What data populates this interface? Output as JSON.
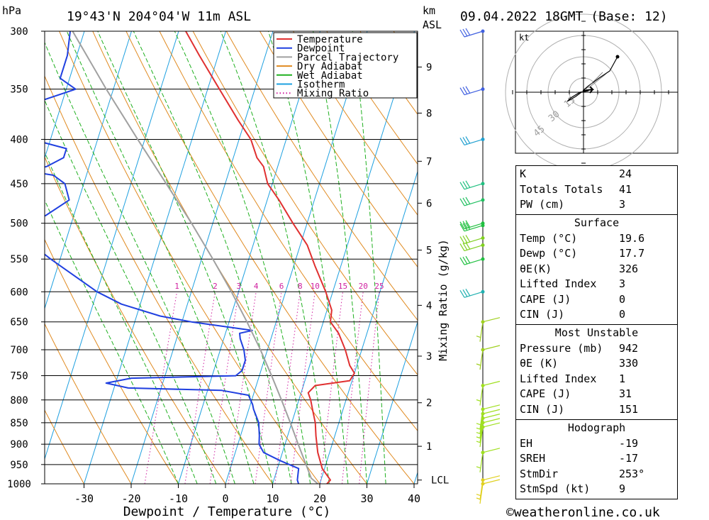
{
  "header": {
    "pressure_unit": "hPa",
    "location": "19°43'N  204°04'W  11m  ASL",
    "km_unit": "km",
    "km_asl": "ASL",
    "datetime": "09.04.2022  18GMT  (Base: 12)"
  },
  "chart_data": {
    "type": "line",
    "xlabel": "Dewpoint / Temperature (°C)",
    "ylabel_right": "Mixing Ratio (g/kg)",
    "xlim": [
      -40,
      40
    ],
    "ylim": [
      1000,
      300
    ],
    "pressure_ticks": [
      300,
      350,
      400,
      450,
      500,
      550,
      600,
      650,
      700,
      750,
      800,
      850,
      900,
      950,
      1000
    ],
    "temperature_ticks": [
      -30,
      -20,
      -10,
      0,
      10,
      20,
      30,
      40
    ],
    "km_ticks": [
      {
        "label": "9",
        "p": 330
      },
      {
        "label": "8",
        "p": 373
      },
      {
        "label": "7",
        "p": 424
      },
      {
        "label": "6",
        "p": 474
      },
      {
        "label": "5",
        "p": 537
      },
      {
        "label": "4",
        "p": 622
      },
      {
        "label": "3",
        "p": 712
      },
      {
        "label": "2",
        "p": 806
      },
      {
        "label": "1",
        "p": 905
      },
      {
        "label": "LCL",
        "p": 990
      }
    ],
    "mixing_ratio_labels": [
      "1",
      "2",
      "3",
      "4",
      "6",
      "8",
      "10",
      "15",
      "20",
      "25"
    ],
    "mixing_ratio_values": [
      1,
      2,
      3,
      4,
      6,
      8,
      10,
      15,
      20,
      25
    ],
    "legend": [
      {
        "name": "Temperature",
        "color": "#e03030",
        "dotted": false
      },
      {
        "name": "Dewpoint",
        "color": "#2040e0",
        "dotted": false
      },
      {
        "name": "Parcel Trajectory",
        "color": "#a0a0a0",
        "dotted": false
      },
      {
        "name": "Dry Adiabat",
        "color": "#e08a20",
        "dotted": false
      },
      {
        "name": "Wet Adiabat",
        "color": "#20b020",
        "dotted": false
      },
      {
        "name": "Isotherm",
        "color": "#1ea0e0",
        "dotted": false
      },
      {
        "name": "Mixing Ratio",
        "color": "#d020a0",
        "dotted": true
      }
    ],
    "series": [
      {
        "name": "Temperature",
        "color": "#e03030",
        "points": [
          [
            1000,
            21.5
          ],
          [
            990,
            22.0
          ],
          [
            960,
            19.5
          ],
          [
            920,
            17.5
          ],
          [
            880,
            16.0
          ],
          [
            850,
            15.0
          ],
          [
            820,
            13.5
          ],
          [
            800,
            12.5
          ],
          [
            785,
            11.5
          ],
          [
            770,
            12.5
          ],
          [
            760,
            19.5
          ],
          [
            745,
            20.0
          ],
          [
            730,
            18.5
          ],
          [
            700,
            16.5
          ],
          [
            670,
            14.0
          ],
          [
            650,
            11.5
          ],
          [
            630,
            11.0
          ],
          [
            600,
            8.5
          ],
          [
            560,
            4.5
          ],
          [
            530,
            1.5
          ],
          [
            500,
            -3.0
          ],
          [
            470,
            -7.5
          ],
          [
            450,
            -11.0
          ],
          [
            430,
            -13.0
          ],
          [
            420,
            -15.0
          ],
          [
            400,
            -17.5
          ],
          [
            380,
            -21.5
          ],
          [
            350,
            -27.5
          ],
          [
            320,
            -34.0
          ],
          [
            300,
            -38.5
          ]
        ]
      },
      {
        "name": "Dewpoint",
        "color": "#2040e0",
        "points": [
          [
            1000,
            15.5
          ],
          [
            990,
            15.0
          ],
          [
            960,
            14.5
          ],
          [
            940,
            10.0
          ],
          [
            920,
            6.0
          ],
          [
            900,
            4.5
          ],
          [
            880,
            4.0
          ],
          [
            850,
            3.0
          ],
          [
            820,
            1.0
          ],
          [
            810,
            0.5
          ],
          [
            790,
            -1.0
          ],
          [
            780,
            -7.0
          ],
          [
            775,
            -27.0
          ],
          [
            765,
            -32.0
          ],
          [
            755,
            -27.0
          ],
          [
            750,
            -5.0
          ],
          [
            740,
            -4.0
          ],
          [
            720,
            -4.0
          ],
          [
            700,
            -5.0
          ],
          [
            680,
            -6.5
          ],
          [
            670,
            -7.0
          ],
          [
            665,
            -4.5
          ],
          [
            660,
            -9.0
          ],
          [
            650,
            -18.0
          ],
          [
            640,
            -25.0
          ],
          [
            620,
            -34.0
          ],
          [
            600,
            -40.0
          ],
          [
            550,
            -52.0
          ],
          [
            500,
            -64.0
          ],
          [
            490,
            -56.0
          ],
          [
            470,
            -52.0
          ],
          [
            450,
            -54.0
          ],
          [
            440,
            -57.0
          ],
          [
            435,
            -63.0
          ],
          [
            430,
            -59.0
          ],
          [
            420,
            -56.0
          ],
          [
            410,
            -56.0
          ],
          [
            400,
            -64.0
          ],
          [
            380,
            -68.0
          ],
          [
            370,
            -66.0
          ],
          [
            360,
            -64.0
          ],
          [
            350,
            -58.0
          ],
          [
            340,
            -62.0
          ],
          [
            320,
            -62.0
          ],
          [
            300,
            -63.0
          ]
        ]
      },
      {
        "name": "Parcel Trajectory",
        "color": "#a0a0a0",
        "points": [
          [
            1000,
            19.6
          ],
          [
            985,
            17.8
          ],
          [
            950,
            15.8
          ],
          [
            900,
            12.8
          ],
          [
            850,
            9.7
          ],
          [
            800,
            6.3
          ],
          [
            750,
            2.6
          ],
          [
            700,
            -1.5
          ],
          [
            650,
            -6.2
          ],
          [
            600,
            -11.5
          ],
          [
            550,
            -17.6
          ],
          [
            500,
            -24.5
          ],
          [
            450,
            -32.5
          ],
          [
            400,
            -41.5
          ],
          [
            350,
            -51.5
          ],
          [
            300,
            -62.5
          ]
        ]
      }
    ]
  },
  "hodograph": {
    "unit": "kt",
    "rings": [
      "15",
      "30",
      "45"
    ]
  },
  "indices": {
    "top": [
      {
        "label": "K",
        "value": "24"
      },
      {
        "label": "Totals Totals",
        "value": "41"
      },
      {
        "label": "PW (cm)",
        "value": "3"
      }
    ],
    "surface": {
      "title": "Surface",
      "rows": [
        {
          "label": "Temp (°C)",
          "value": "19.6"
        },
        {
          "label": "Dewp (°C)",
          "value": "17.7"
        },
        {
          "label": "θE(K)",
          "value": "326"
        },
        {
          "label": "Lifted Index",
          "value": "3"
        },
        {
          "label": "CAPE (J)",
          "value": "0"
        },
        {
          "label": "CIN (J)",
          "value": "0"
        }
      ]
    },
    "most_unstable": {
      "title": "Most Unstable",
      "rows": [
        {
          "label": "Pressure (mb)",
          "value": "942"
        },
        {
          "label": "θE (K)",
          "value": "330"
        },
        {
          "label": "Lifted Index",
          "value": "1"
        },
        {
          "label": "CAPE (J)",
          "value": "31"
        },
        {
          "label": "CIN (J)",
          "value": "151"
        }
      ]
    },
    "hodograph_params": {
      "title": "Hodograph",
      "rows": [
        {
          "label": "EH",
          "value": "-19"
        },
        {
          "label": "SREH",
          "value": "-17"
        },
        {
          "label": "StmDir",
          "value": "253°"
        },
        {
          "label": "StmSpd (kt)",
          "value": "9"
        }
      ]
    }
  },
  "wind_barbs": [
    {
      "p": 300,
      "color": "#4060e0"
    },
    {
      "p": 350,
      "color": "#4060e0"
    },
    {
      "p": 400,
      "color": "#20a0d0"
    },
    {
      "p": 450,
      "color": "#20c080"
    },
    {
      "p": 470,
      "color": "#20c060"
    },
    {
      "p": 500,
      "color": "#20c040"
    },
    {
      "p": 503,
      "color": "#20c040"
    },
    {
      "p": 520,
      "color": "#80d020"
    },
    {
      "p": 530,
      "color": "#80d020"
    },
    {
      "p": 550,
      "color": "#20c040"
    },
    {
      "p": 600,
      "color": "#20b0b0"
    },
    {
      "p": 650,
      "color": "#a0d020"
    },
    {
      "p": 700,
      "color": "#a0d020"
    },
    {
      "p": 770,
      "color": "#a0e020"
    },
    {
      "p": 820,
      "color": "#a0e020"
    },
    {
      "p": 830,
      "color": "#a0e020"
    },
    {
      "p": 840,
      "color": "#a0e020"
    },
    {
      "p": 850,
      "color": "#a0e020"
    },
    {
      "p": 860,
      "color": "#a0e020"
    },
    {
      "p": 920,
      "color": "#a0e020"
    },
    {
      "p": 990,
      "color": "#e0d020"
    },
    {
      "p": 1000,
      "color": "#e0d020"
    }
  ],
  "footer": {
    "copyright": "©weatheronline.co.uk"
  }
}
